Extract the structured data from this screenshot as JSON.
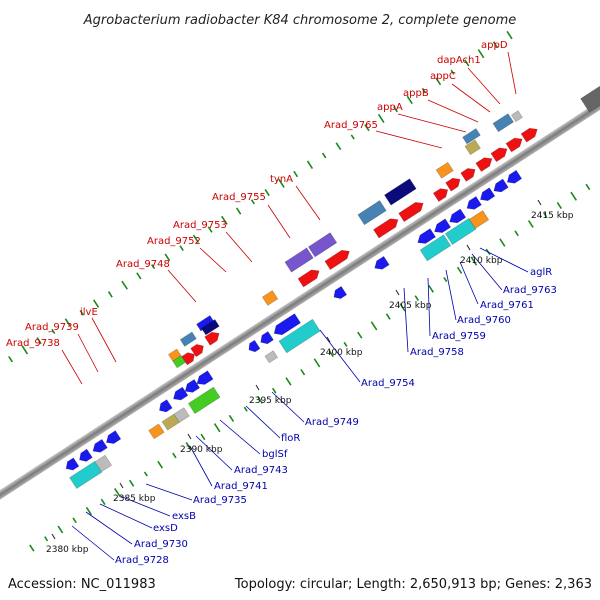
{
  "title": "Agrobacterium radiobacter K84 chromosome 2, complete genome",
  "footer": {
    "accession": "Accession: NC_011983",
    "summary": "Topology: circular; Length: 2,650,913 bp; Genes: 2,363"
  },
  "scale_ticks": [
    "2380 kbp",
    "2385 kbp",
    "2390 kbp",
    "2395 kbp",
    "2400 kbp",
    "2405 kbp",
    "2410 kbp",
    "2415 kbp"
  ],
  "top_strand_labels": [
    "appD",
    "dapAch1",
    "appC",
    "appB",
    "appA",
    "Arad_9765",
    "tynA",
    "Arad_9755",
    "Arad_9753",
    "Arad_9752",
    "Arad_9748",
    "ilvE",
    "Arad_9739",
    "Arad_9738"
  ],
  "bottom_strand_labels": [
    "aglR",
    "Arad_9763",
    "Arad_9761",
    "Arad_9760",
    "Arad_9759",
    "Arad_9758",
    "Arad_9754",
    "Arad_9749",
    "floR",
    "bglSf",
    "Arad_9743",
    "Arad_9741",
    "Arad_9735",
    "exsB",
    "exsD",
    "Arad_9730",
    "Arad_9728"
  ],
  "colors": {
    "top_label": "#cc0000",
    "bottom_label": "#0000aa",
    "backbone": "#8a8a8a",
    "gene_red": "#ee1111",
    "gene_blue": "#1a1aee",
    "gene_cyan": "#22cccc",
    "gene_orange": "#f7941d",
    "gene_purple": "#7755cc",
    "gene_steel": "#4682b4",
    "gene_navy": "#0a0a7a",
    "gene_green": "#44cc22",
    "gene_olive": "#bbaa55",
    "gene_gray": "#bbbbbb",
    "gc_dots": "#1a8a1a"
  }
}
